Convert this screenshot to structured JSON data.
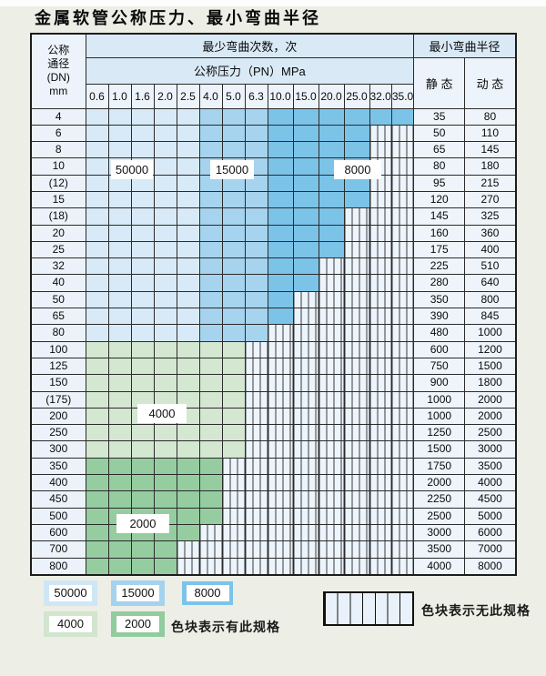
{
  "title": "金属软管公称压力、最小弯曲半径",
  "table": {
    "dn_header_lines": [
      "公称",
      "通径",
      "(DN)",
      "mm"
    ],
    "bend_header": "最少弯曲次数，次",
    "pressure_header": "公称压力（PN）MPa",
    "radius_header": "最小弯曲半径",
    "static_header": "静 态",
    "dynamic_header": "动 态",
    "pressures": [
      "0.6",
      "1.0",
      "1.6",
      "2.0",
      "2.5",
      "4.0",
      "5.0",
      "6.3",
      "10.0",
      "15.0",
      "20.0",
      "25.0",
      "32.0",
      "35.0"
    ],
    "bend_cycles_by_shade": {
      "blue-light": "50000 cycles, PN 0.6-2.5",
      "blue-medium": "15000 cycles, PN 4.0-6.3",
      "blue-dark": "8000 cycles, PN 10.0-35.0",
      "green-light": "4000 cycles",
      "green-dark": "2000 cycles"
    },
    "rows": [
      {
        "dn": "4",
        "last": 13,
        "pal": "blue",
        "s": "35",
        "d": "80"
      },
      {
        "dn": "6",
        "last": 11,
        "pal": "blue",
        "s": "50",
        "d": "110"
      },
      {
        "dn": "8",
        "last": 11,
        "pal": "blue",
        "s": "65",
        "d": "145"
      },
      {
        "dn": "10",
        "last": 11,
        "pal": "blue",
        "s": "80",
        "d": "180"
      },
      {
        "dn": "(12)",
        "last": 11,
        "pal": "blue",
        "s": "95",
        "d": "215"
      },
      {
        "dn": "15",
        "last": 11,
        "pal": "blue",
        "s": "120",
        "d": "270"
      },
      {
        "dn": "(18)",
        "last": 10,
        "pal": "blue",
        "s": "145",
        "d": "325"
      },
      {
        "dn": "20",
        "last": 10,
        "pal": "blue",
        "s": "160",
        "d": "360"
      },
      {
        "dn": "25",
        "last": 10,
        "pal": "blue",
        "s": "175",
        "d": "400"
      },
      {
        "dn": "32",
        "last": 9,
        "pal": "blue",
        "s": "225",
        "d": "510"
      },
      {
        "dn": "40",
        "last": 9,
        "pal": "blue",
        "s": "280",
        "d": "640"
      },
      {
        "dn": "50",
        "last": 8,
        "pal": "blue",
        "s": "350",
        "d": "800"
      },
      {
        "dn": "65",
        "last": 8,
        "pal": "blue",
        "s": "390",
        "d": "845"
      },
      {
        "dn": "80",
        "last": 7,
        "pal": "blue",
        "s": "480",
        "d": "1000"
      },
      {
        "dn": "100",
        "last": 6,
        "pal": "green-light",
        "s": "600",
        "d": "1200"
      },
      {
        "dn": "125",
        "last": 6,
        "pal": "green-light",
        "s": "750",
        "d": "1500"
      },
      {
        "dn": "150",
        "last": 6,
        "pal": "green-light",
        "s": "900",
        "d": "1800"
      },
      {
        "dn": "(175)",
        "last": 6,
        "pal": "green-light",
        "s": "1000",
        "d": "2000"
      },
      {
        "dn": "200",
        "last": 6,
        "pal": "green-light",
        "s": "1000",
        "d": "2000"
      },
      {
        "dn": "250",
        "last": 6,
        "pal": "green-light",
        "s": "1250",
        "d": "2500"
      },
      {
        "dn": "300",
        "last": 6,
        "pal": "green-light",
        "s": "1500",
        "d": "3000"
      },
      {
        "dn": "350",
        "last": 5,
        "pal": "green-dark",
        "s": "1750",
        "d": "3500"
      },
      {
        "dn": "400",
        "last": 5,
        "pal": "green-dark",
        "s": "2000",
        "d": "4000"
      },
      {
        "dn": "450",
        "last": 5,
        "pal": "green-dark",
        "s": "2250",
        "d": "4500"
      },
      {
        "dn": "500",
        "last": 5,
        "pal": "green-dark",
        "s": "2500",
        "d": "5000"
      },
      {
        "dn": "600",
        "last": 4,
        "pal": "green-dark",
        "s": "3000",
        "d": "6000"
      },
      {
        "dn": "700",
        "last": 3,
        "pal": "green-dark",
        "s": "3500",
        "d": "7000"
      },
      {
        "dn": "800",
        "last": 3,
        "pal": "green-dark",
        "s": "4000",
        "d": "8000"
      }
    ]
  },
  "overlays": {
    "b50000": "50000",
    "b15000": "15000",
    "b8000": "8000",
    "b4000": "4000",
    "b2000": "2000"
  },
  "legend": {
    "sw50000": "50000",
    "sw15000": "15000",
    "sw8000": "8000",
    "sw4000": "4000",
    "sw2000": "2000",
    "has_spec_text": "色块表示有此规格",
    "no_spec_text": "色块表示无此规格"
  },
  "colors": {
    "blue_light": "#d8eaf7",
    "blue_medium": "#a6d3ee",
    "blue_dark": "#7cc3e8",
    "green_light": "#d4e7d1",
    "green_dark": "#95cda0",
    "hatch_fill": "#ecf4fc",
    "header_blue": "#d9e9f5",
    "page_background": "#edeee5"
  }
}
